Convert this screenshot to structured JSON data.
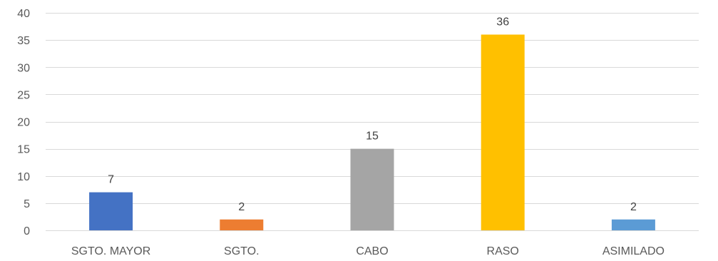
{
  "chart_data": {
    "type": "bar",
    "categories": [
      "SGTO. MAYOR",
      "SGTO.",
      "CABO",
      "RASO",
      "ASIMILADO"
    ],
    "values": [
      7,
      2,
      15,
      36,
      2
    ],
    "colors": [
      "#4472c4",
      "#ed7d31",
      "#a5a5a5",
      "#ffc000",
      "#5b9bd5"
    ],
    "ylim": [
      0,
      40
    ],
    "yticks": [
      0,
      5,
      10,
      15,
      20,
      25,
      30,
      35,
      40
    ],
    "grid": true,
    "title": "",
    "xlabel": "",
    "ylabel": "",
    "data_labels": true
  }
}
